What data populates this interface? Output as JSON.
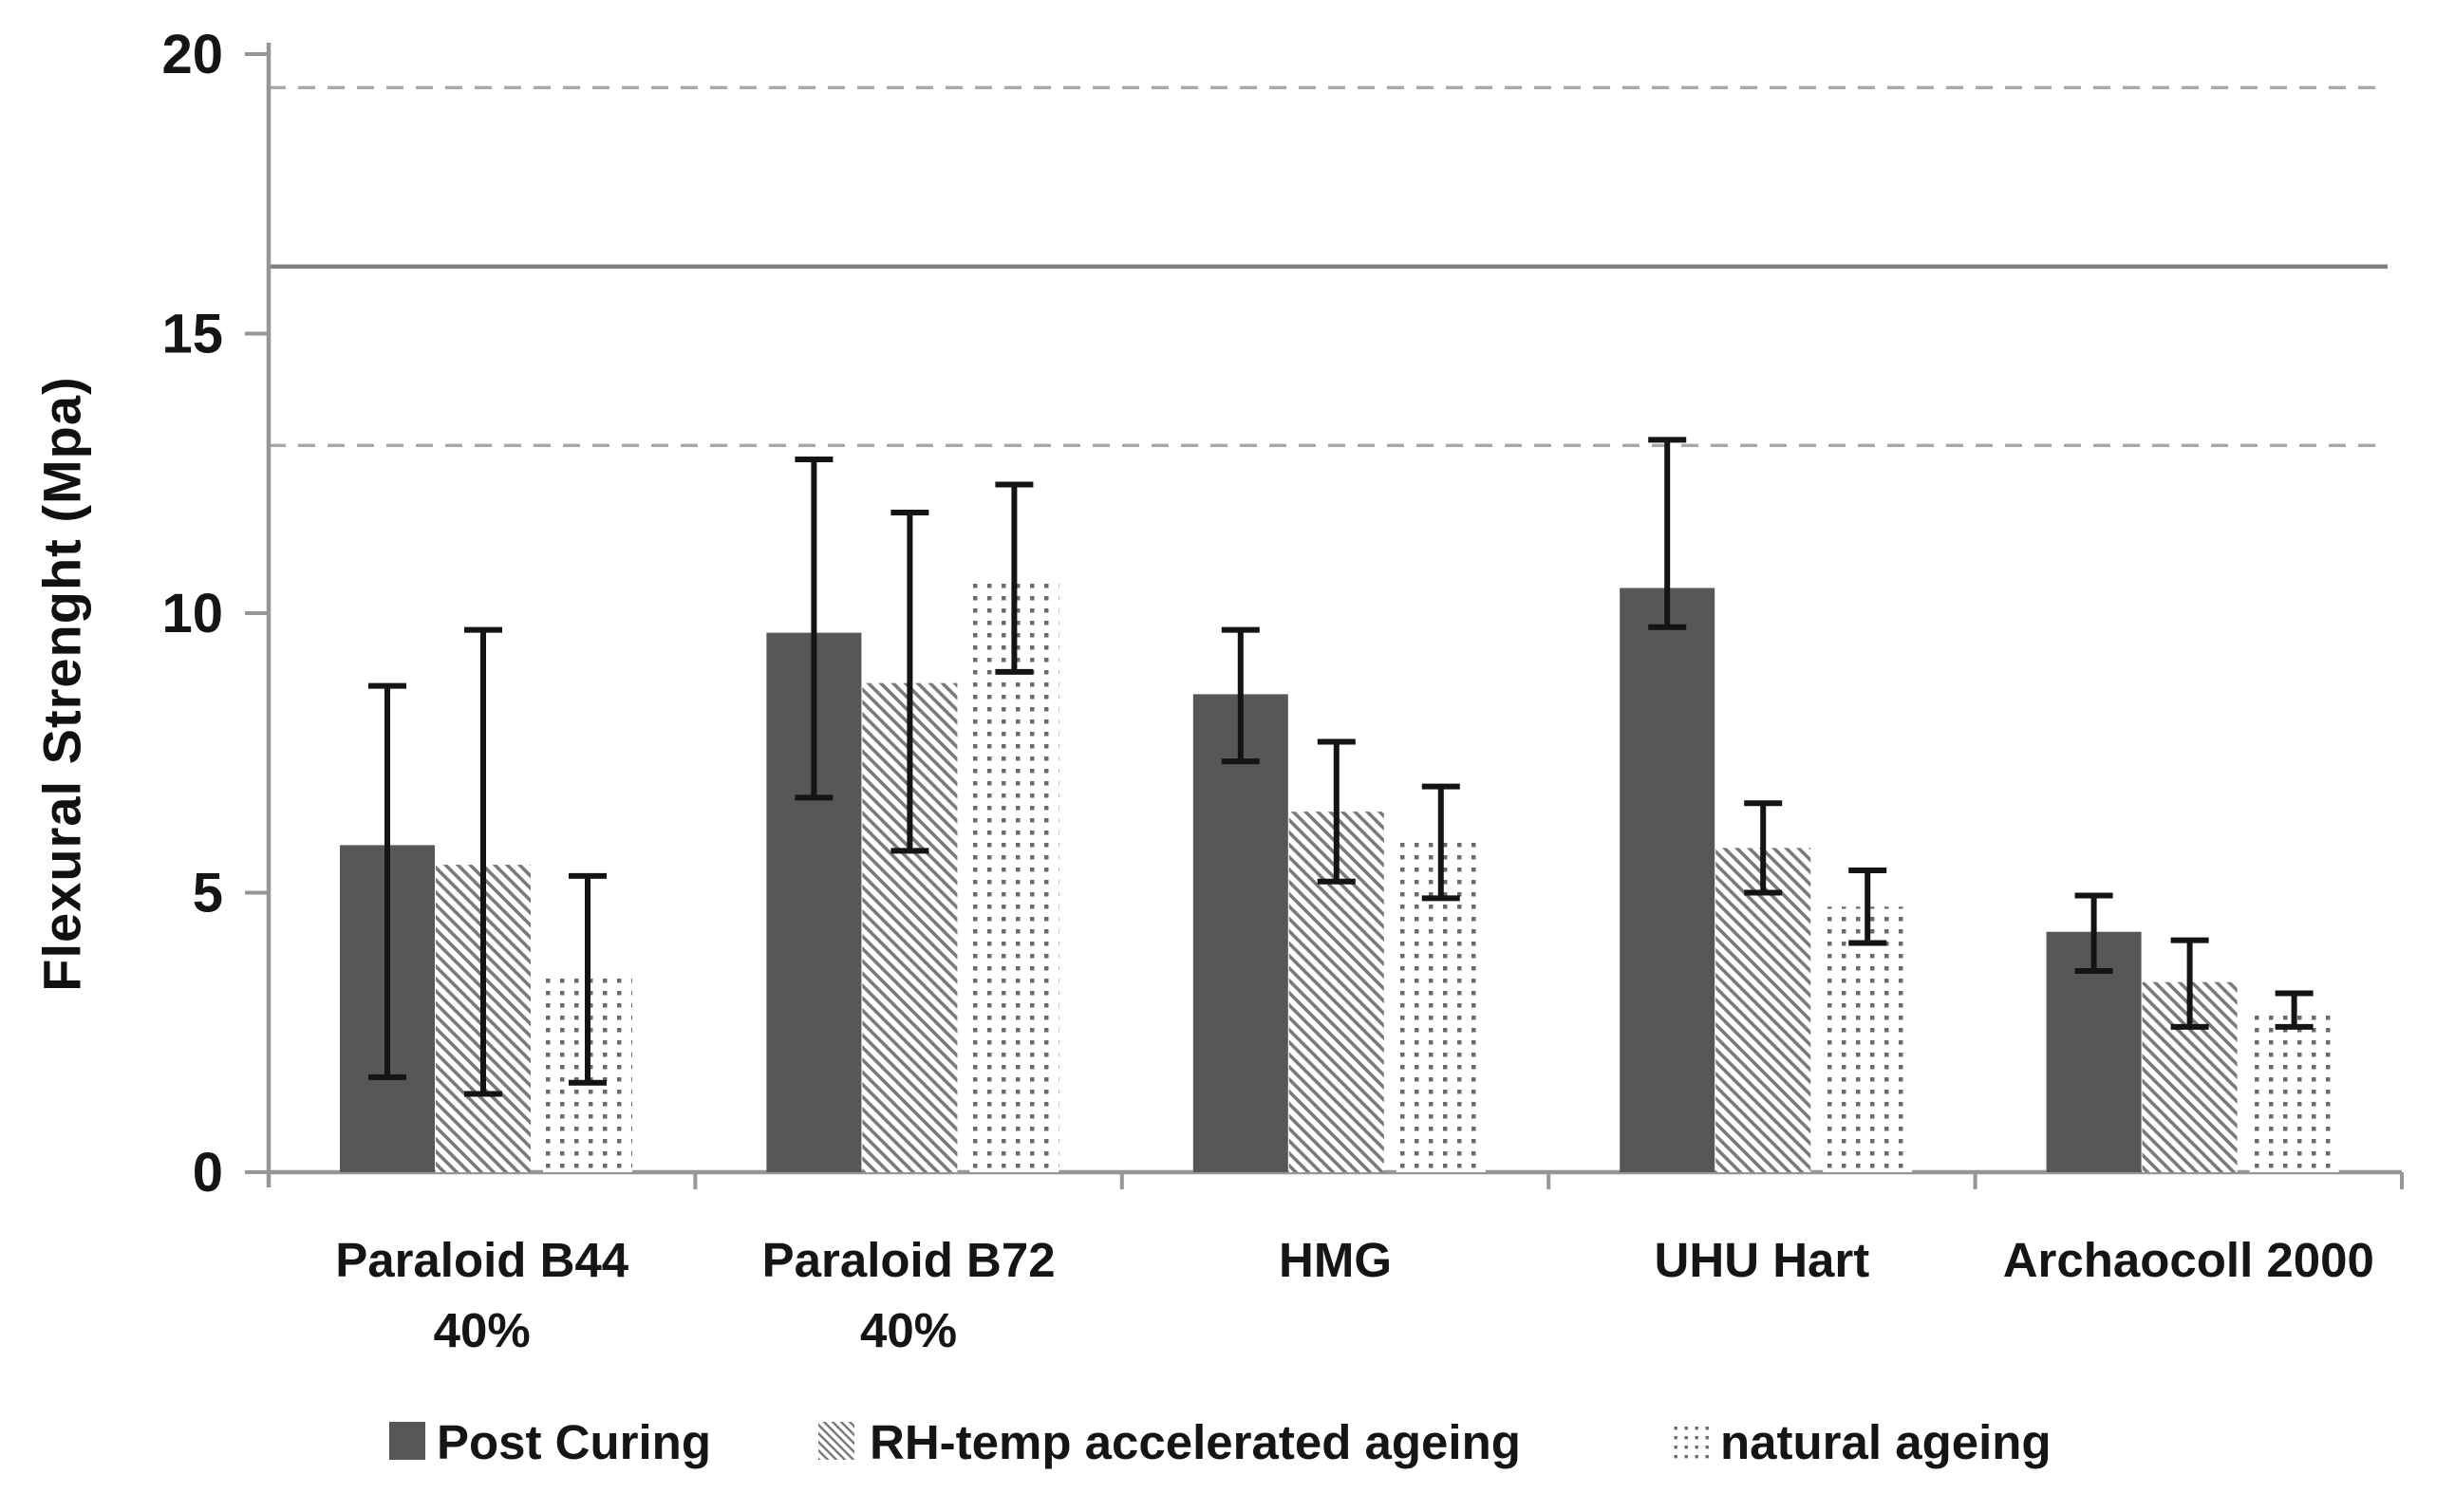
{
  "chart_data": {
    "type": "bar",
    "title": "",
    "xlabel": "",
    "ylabel": "Flexural Strenght (Mpa)",
    "ylim": [
      0,
      20
    ],
    "yticks": [
      0,
      5,
      10,
      15,
      20
    ],
    "grid": false,
    "legend_position": "bottom",
    "categories": [
      "Paraloid B44 40%",
      "Paraloid B72 40%",
      "HMG",
      "UHU Hart",
      "Archaocoll 2000"
    ],
    "category_label_lines": [
      [
        "Paraloid B44",
        "40%"
      ],
      [
        "Paraloid B72",
        "40%"
      ],
      [
        "HMG"
      ],
      [
        "UHU Hart"
      ],
      [
        "Archaocoll 2000"
      ]
    ],
    "series": [
      {
        "name": "Post Curing",
        "pattern": "solid",
        "color": "#575757",
        "values": [
          5.85,
          9.65,
          8.55,
          10.45,
          4.3
        ],
        "error_low": [
          1.7,
          6.7,
          7.35,
          9.75,
          3.6
        ],
        "error_high": [
          8.7,
          12.75,
          9.7,
          13.1,
          4.95
        ]
      },
      {
        "name": "RH-temp accelerated ageing",
        "pattern": "diagonal-hatch",
        "color": "#7a7a7a",
        "values": [
          5.5,
          8.75,
          6.45,
          5.8,
          3.4
        ],
        "error_low": [
          1.4,
          5.75,
          5.2,
          5.0,
          2.6
        ],
        "error_high": [
          9.7,
          11.8,
          7.7,
          6.6,
          4.15
        ]
      },
      {
        "name": "natural ageing",
        "pattern": "dots",
        "color": "#6b6b6b",
        "values": [
          3.5,
          10.65,
          5.9,
          4.75,
          2.9
        ],
        "error_low": [
          1.6,
          8.95,
          4.9,
          4.1,
          2.6
        ],
        "error_high": [
          5.3,
          12.3,
          6.9,
          5.4,
          3.2
        ]
      }
    ],
    "reference_lines": [
      {
        "value": 19.4,
        "style": "dashed",
        "color": "#a8a8a8"
      },
      {
        "value": 16.2,
        "style": "solid",
        "color": "#7f7f7f"
      },
      {
        "value": 13.0,
        "style": "dashed",
        "color": "#a8a8a8"
      }
    ],
    "error_bar_color": "#141414",
    "axis_color": "#969696",
    "text_color": "#151515"
  }
}
